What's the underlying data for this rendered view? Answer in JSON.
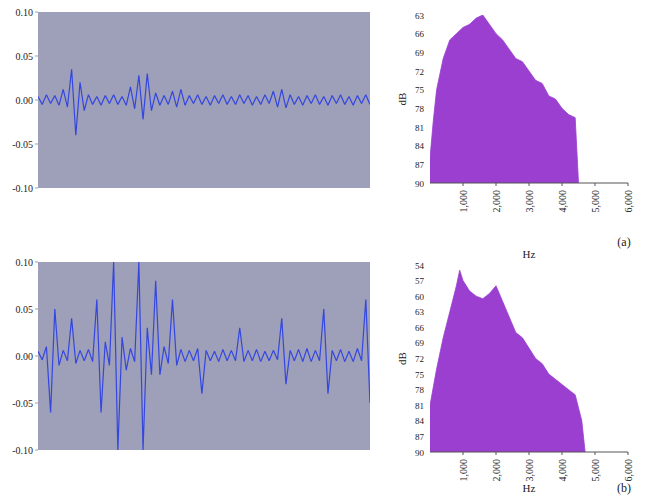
{
  "chart_data": [
    {
      "type": "line",
      "color": "#3446e0",
      "tick_labels": "y",
      "ylim": [
        -0.1,
        0.1
      ],
      "yticks": [
        {
          "value": 0.1,
          "label": "0.10"
        },
        0.05,
        {
          "value": 0,
          "label": "0.00"
        },
        -0.05,
        {
          "value": -0.1,
          "label": "-0.10"
        }
      ],
      "values": [
        0.004,
        -0.005,
        0.006,
        -0.004,
        0.005,
        -0.006,
        0.012,
        -0.008,
        0.035,
        -0.04,
        0.02,
        -0.012,
        0.006,
        -0.005,
        0.004,
        -0.006,
        0.005,
        -0.004,
        0.006,
        -0.005,
        0.004,
        -0.006,
        0.015,
        -0.01,
        0.028,
        -0.022,
        0.03,
        -0.012,
        0.008,
        -0.006,
        0.005,
        -0.005,
        0.01,
        -0.008,
        0.012,
        -0.006,
        0.005,
        -0.004,
        0.006,
        -0.005,
        0.004,
        -0.006,
        0.005,
        -0.004,
        0.006,
        -0.005,
        0.004,
        -0.005,
        0.006,
        -0.004,
        0.005,
        -0.006,
        0.004,
        -0.005,
        0.006,
        -0.004,
        0.01,
        -0.008,
        0.012,
        -0.009,
        0.006,
        -0.005,
        0.004,
        -0.006,
        0.005,
        -0.004,
        0.006,
        -0.005,
        0.004,
        -0.006,
        0.005,
        -0.004,
        0.006,
        -0.005,
        0.004,
        -0.006,
        0.005,
        -0.004,
        0.006,
        -0.005
      ]
    },
    {
      "type": "area",
      "color": "#9a3fd0",
      "x_label": "Hz",
      "y_label": "dB",
      "annotations": [
        "(a)"
      ],
      "xlim": [
        0,
        6000
      ],
      "xticks": [
        {
          "value": 1000,
          "label": "1,000"
        },
        {
          "value": 2000,
          "label": "2,000"
        },
        {
          "value": 3000,
          "label": "3,000"
        },
        {
          "value": 4000,
          "label": "4,000"
        },
        {
          "value": 5000,
          "label": "5,000"
        },
        {
          "value": 6000,
          "label": "6,000"
        }
      ],
      "ylim": [
        90,
        63
      ],
      "yticks": [
        63,
        66,
        69,
        72,
        75,
        78,
        81,
        84,
        87,
        90
      ],
      "x": [
        0,
        100,
        200,
        400,
        600,
        800,
        1000,
        1200,
        1400,
        1600,
        1800,
        2000,
        2200,
        2400,
        2600,
        2800,
        3000,
        3200,
        3400,
        3600,
        3800,
        4000,
        4200,
        4400,
        4500
      ],
      "values": [
        86,
        80,
        75,
        70,
        67,
        66,
        65,
        64.5,
        63.5,
        63,
        64.5,
        66,
        67,
        68.5,
        70,
        70.5,
        72,
        73.5,
        74,
        76,
        76.5,
        78,
        79,
        79.5,
        90
      ]
    },
    {
      "type": "line",
      "color": "#3446e0",
      "tick_labels": "y",
      "ylim": [
        -0.1,
        0.1
      ],
      "yticks": [
        {
          "value": 0.1,
          "label": "0.10"
        },
        0.05,
        {
          "value": 0,
          "label": "0.00"
        },
        -0.05,
        {
          "value": -0.1,
          "label": "-0.10"
        }
      ],
      "values": [
        0.005,
        -0.004,
        0.01,
        -0.06,
        0.05,
        -0.01,
        0.006,
        -0.005,
        0.04,
        -0.008,
        0.006,
        -0.005,
        0.007,
        -0.006,
        0.06,
        -0.06,
        0.015,
        -0.01,
        0.1,
        -0.1,
        0.02,
        -0.015,
        0.008,
        -0.006,
        0.1,
        -0.1,
        0.03,
        -0.02,
        0.08,
        -0.02,
        0.01,
        -0.008,
        0.06,
        -0.01,
        0.007,
        -0.006,
        0.006,
        -0.005,
        0.008,
        -0.04,
        0.006,
        -0.005,
        0.005,
        -0.006,
        0.007,
        -0.005,
        0.006,
        -0.005,
        0.03,
        -0.006,
        0.006,
        -0.005,
        0.007,
        -0.006,
        0.005,
        -0.005,
        0.006,
        -0.004,
        0.04,
        -0.03,
        0.006,
        -0.005,
        0.007,
        -0.006,
        0.008,
        -0.006,
        0.006,
        -0.005,
        0.05,
        -0.04,
        0.006,
        -0.005,
        0.007,
        -0.006,
        0.005,
        -0.006,
        0.008,
        -0.005,
        0.06,
        -0.05
      ]
    },
    {
      "type": "area",
      "color": "#9a3fd0",
      "x_label": "Hz",
      "y_label": "dB",
      "annotations": [
        "(b)"
      ],
      "xlim": [
        0,
        6000
      ],
      "xticks": [
        {
          "value": 1000,
          "label": "1,000"
        },
        {
          "value": 2000,
          "label": "2,000"
        },
        {
          "value": 3000,
          "label": "3,000"
        },
        {
          "value": 4000,
          "label": "4,000"
        },
        {
          "value": 5000,
          "label": "5,000"
        },
        {
          "value": 6000,
          "label": "6,000"
        }
      ],
      "ylim": [
        90,
        54
      ],
      "yticks": [
        54,
        57,
        60,
        63,
        66,
        69,
        72,
        75,
        78,
        81,
        84,
        87,
        90
      ],
      "x": [
        0,
        200,
        400,
        600,
        800,
        900,
        1000,
        1200,
        1400,
        1600,
        1800,
        2000,
        2200,
        2400,
        2600,
        2800,
        3000,
        3200,
        3400,
        3600,
        3800,
        4000,
        4200,
        4400,
        4600,
        4700
      ],
      "values": [
        81,
        74,
        68,
        63,
        58,
        55,
        57,
        59,
        60,
        60.5,
        59.5,
        58,
        61,
        64,
        67,
        68,
        70,
        72,
        73,
        75,
        76,
        77,
        78,
        79,
        84,
        90
      ]
    }
  ]
}
